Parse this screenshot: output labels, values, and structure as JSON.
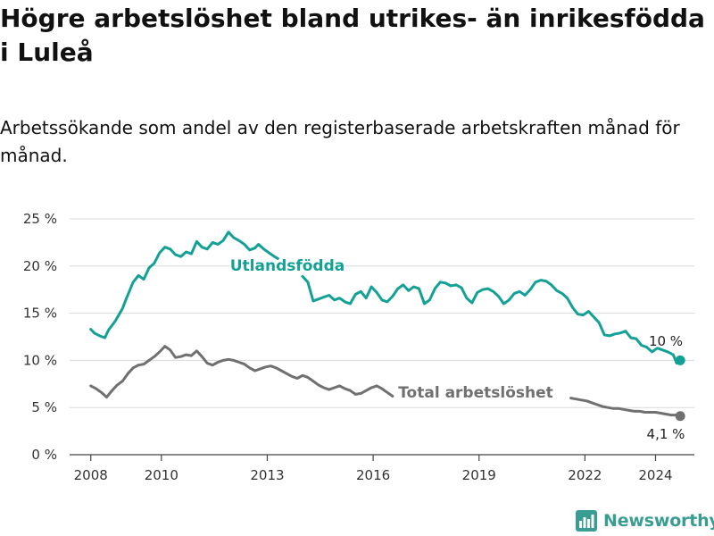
{
  "header": {
    "title": "Högre arbetslöshet bland utrikes- än inrikesfödda i Luleå",
    "subtitle": "Arbetssökande som andel av den registerbaserade arbetskraften månad för månad."
  },
  "brand": {
    "name": "Newsworthy",
    "icon": "bar-chart-logo-icon",
    "color": "#3a9d93"
  },
  "chart_data": {
    "type": "line",
    "ylim": [
      0,
      25
    ],
    "yticks": [
      0,
      5,
      10,
      15,
      20,
      25
    ],
    "ytick_labels": [
      "0 %",
      "5 %",
      "10 %",
      "15 %",
      "20 %",
      "25 %"
    ],
    "xlim": [
      2007.4,
      2025.1
    ],
    "xticks": [
      2008,
      2010,
      2013,
      2016,
      2019,
      2022,
      2024
    ],
    "xtick_labels": [
      "2008",
      "2010",
      "2013",
      "2016",
      "2019",
      "2022",
      "2024"
    ],
    "grid": true,
    "series": [
      {
        "name": "Utlandsfödda",
        "color": "#13a196",
        "end_label": "10 %",
        "x": [
          2008.0,
          2008.1,
          2008.25,
          2008.4,
          2008.5,
          2008.7,
          2008.9,
          2009.0,
          2009.2,
          2009.35,
          2009.5,
          2009.65,
          2009.8,
          2009.95,
          2010.1,
          2010.25,
          2010.4,
          2010.55,
          2010.7,
          2010.85,
          2011.0,
          2011.15,
          2011.3,
          2011.45,
          2011.6,
          2011.75,
          2011.9,
          2012.05,
          2012.2,
          2012.35,
          2012.5,
          2012.65,
          2012.75,
          2012.9,
          2013.05,
          2013.2,
          2013.3,
          2014.0,
          2014.15,
          2014.3,
          2014.45,
          2014.6,
          2014.75,
          2014.9,
          2015.05,
          2015.2,
          2015.35,
          2015.5,
          2015.65,
          2015.8,
          2015.95,
          2016.1,
          2016.25,
          2016.4,
          2016.55,
          2016.7,
          2016.85,
          2017.0,
          2017.15,
          2017.3,
          2017.45,
          2017.6,
          2017.75,
          2017.9,
          2018.05,
          2018.2,
          2018.35,
          2018.5,
          2018.65,
          2018.8,
          2018.95,
          2019.1,
          2019.25,
          2019.4,
          2019.55,
          2019.7,
          2019.85,
          2020.0,
          2020.15,
          2020.3,
          2020.45,
          2020.6,
          2020.75,
          2020.9,
          2021.05,
          2021.2,
          2021.35,
          2021.5,
          2021.65,
          2021.8,
          2021.95,
          2022.1,
          2022.25,
          2022.4,
          2022.55,
          2022.7,
          2022.85,
          2023.0,
          2023.15,
          2023.3,
          2023.45,
          2023.6,
          2023.75,
          2023.9,
          2024.05,
          2024.2,
          2024.35,
          2024.5,
          2024.6,
          2024.7
        ],
        "values": [
          13.3,
          12.9,
          12.6,
          12.4,
          13.2,
          14.2,
          15.5,
          16.5,
          18.3,
          19.0,
          18.6,
          19.8,
          20.3,
          21.4,
          22.0,
          21.8,
          21.2,
          21.0,
          21.5,
          21.3,
          22.6,
          22.0,
          21.8,
          22.5,
          22.3,
          22.7,
          23.6,
          23.0,
          22.7,
          22.3,
          21.7,
          21.9,
          22.3,
          21.8,
          21.4,
          21.0,
          20.8,
          18.9,
          18.3,
          16.3,
          16.5,
          16.7,
          16.9,
          16.4,
          16.6,
          16.2,
          16.0,
          17.0,
          17.3,
          16.6,
          17.8,
          17.2,
          16.4,
          16.2,
          16.8,
          17.6,
          18.0,
          17.4,
          17.8,
          17.6,
          16.0,
          16.4,
          17.6,
          18.3,
          18.2,
          17.9,
          18.0,
          17.7,
          16.6,
          16.1,
          17.2,
          17.5,
          17.6,
          17.3,
          16.8,
          16.0,
          16.4,
          17.1,
          17.3,
          16.9,
          17.5,
          18.3,
          18.5,
          18.4,
          18.0,
          17.4,
          17.1,
          16.6,
          15.6,
          14.9,
          14.8,
          15.2,
          14.6,
          14.0,
          12.7,
          12.6,
          12.8,
          12.9,
          13.1,
          12.4,
          12.3,
          11.6,
          11.4,
          10.9,
          11.3,
          11.1,
          10.9,
          10.6,
          9.7,
          10.0
        ]
      },
      {
        "name": "Total arbetslöshet",
        "color": "#707070",
        "end_label": "4,1 %",
        "x": [
          2008.0,
          2008.15,
          2008.3,
          2008.45,
          2008.6,
          2008.75,
          2008.9,
          2009.05,
          2009.2,
          2009.35,
          2009.5,
          2009.65,
          2009.8,
          2009.95,
          2010.1,
          2010.25,
          2010.4,
          2010.55,
          2010.7,
          2010.85,
          2011.0,
          2011.15,
          2011.3,
          2011.45,
          2011.6,
          2011.75,
          2011.9,
          2012.05,
          2012.2,
          2012.35,
          2012.5,
          2012.65,
          2012.8,
          2012.95,
          2013.1,
          2013.25,
          2013.4,
          2013.55,
          2013.7,
          2013.85,
          2014.0,
          2014.15,
          2014.3,
          2014.45,
          2014.6,
          2014.75,
          2014.9,
          2015.05,
          2015.2,
          2015.35,
          2015.5,
          2015.65,
          2015.8,
          2015.95,
          2016.1,
          2016.25,
          2016.4,
          2016.55,
          2021.6,
          2021.75,
          2021.9,
          2022.05,
          2022.2,
          2022.35,
          2022.5,
          2022.65,
          2022.8,
          2022.95,
          2023.1,
          2023.25,
          2023.4,
          2023.55,
          2023.7,
          2023.85,
          2024.0,
          2024.15,
          2024.3,
          2024.45,
          2024.6,
          2024.7
        ],
        "values": [
          7.3,
          7.0,
          6.6,
          6.1,
          6.8,
          7.4,
          7.8,
          8.6,
          9.2,
          9.5,
          9.6,
          10.0,
          10.4,
          10.9,
          11.5,
          11.1,
          10.3,
          10.4,
          10.6,
          10.5,
          11.0,
          10.4,
          9.7,
          9.5,
          9.8,
          10.0,
          10.1,
          10.0,
          9.8,
          9.6,
          9.2,
          8.9,
          9.1,
          9.3,
          9.4,
          9.2,
          8.9,
          8.6,
          8.3,
          8.1,
          8.4,
          8.2,
          7.8,
          7.4,
          7.1,
          6.9,
          7.1,
          7.3,
          7.0,
          6.8,
          6.4,
          6.5,
          6.8,
          7.1,
          7.3,
          7.0,
          6.6,
          6.2,
          6.0,
          5.9,
          5.8,
          5.7,
          5.5,
          5.3,
          5.1,
          5.0,
          4.9,
          4.9,
          4.8,
          4.7,
          4.6,
          4.6,
          4.5,
          4.5,
          4.5,
          4.4,
          4.3,
          4.2,
          4.2,
          4.1
        ]
      }
    ]
  }
}
